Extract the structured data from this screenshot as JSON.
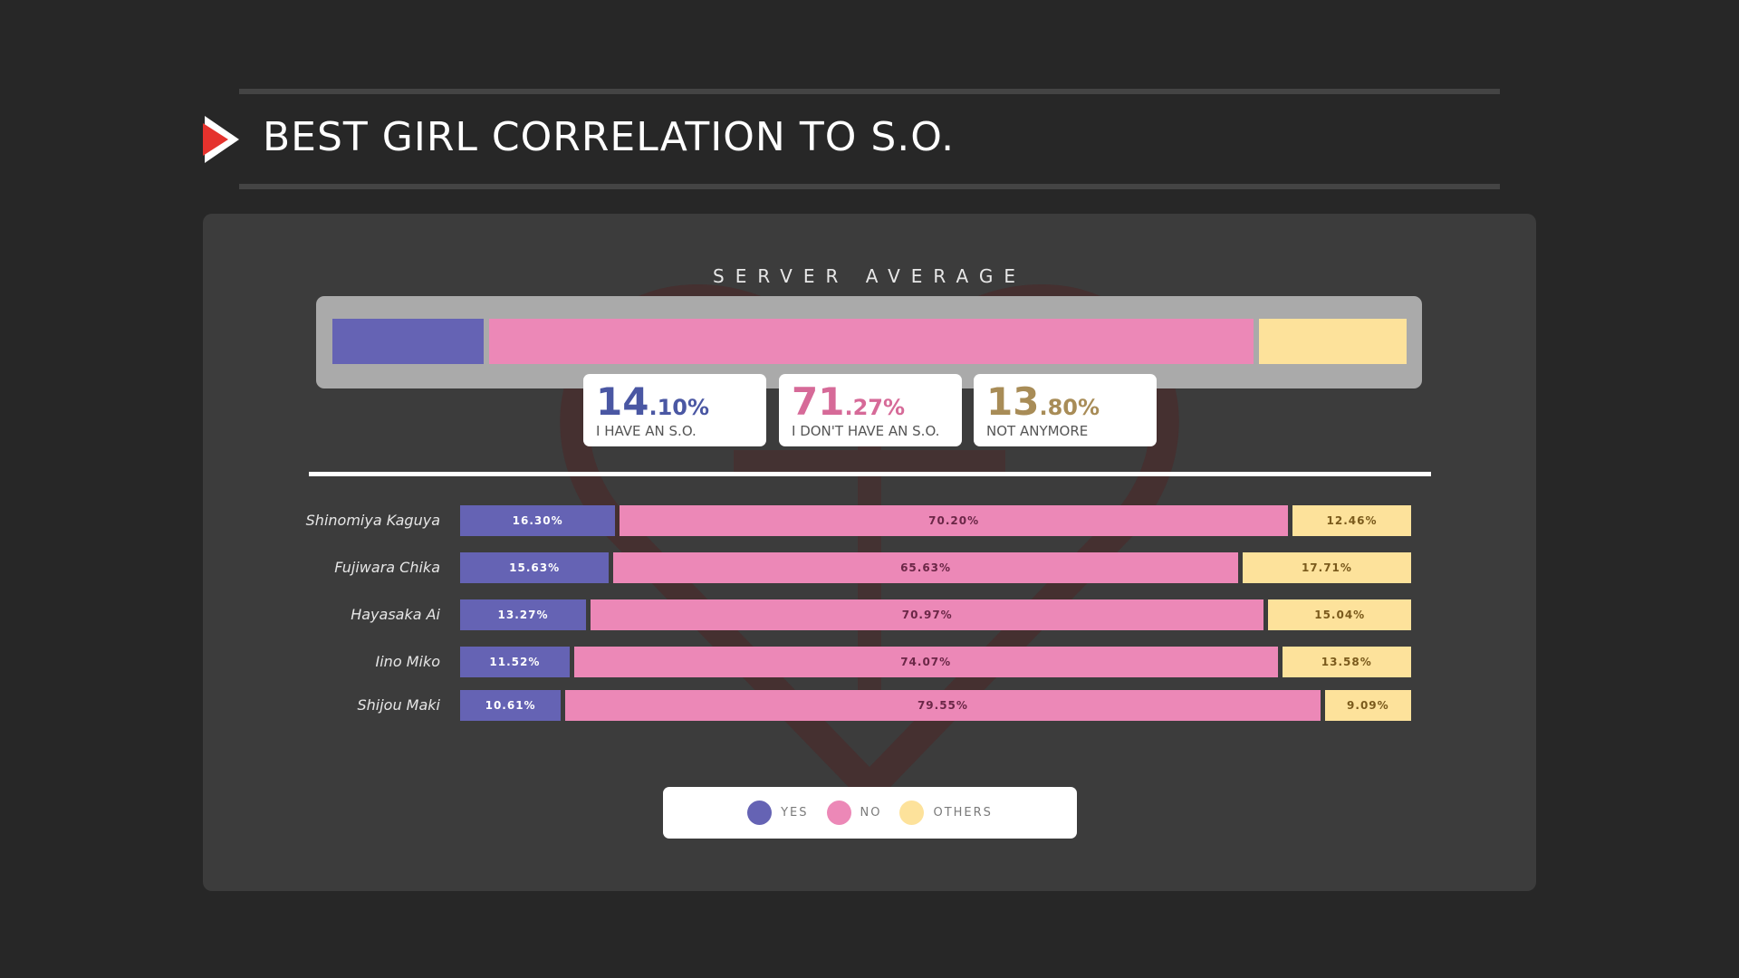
{
  "header": {
    "title": "BEST GIRL CORRELATION TO S.O."
  },
  "colors": {
    "yes": "#6563b4",
    "no": "#ec88b7",
    "others": "#fde29b",
    "yes_text": "#4a57a3",
    "no_text": "#d66a98",
    "others_text": "#a88c57",
    "no_label_text": "#6b2747",
    "others_label_text": "#7a5a1c"
  },
  "server_average": {
    "label": "SERVER AVERAGE",
    "stats": [
      {
        "key": "yes",
        "int": "14",
        "dec": ".10%",
        "caption": "I HAVE AN S.O.",
        "value": 14.1
      },
      {
        "key": "no",
        "int": "71",
        "dec": ".27%",
        "caption": "I DON'T HAVE AN S.O.",
        "value": 71.27
      },
      {
        "key": "others",
        "int": "13",
        "dec": ".80%",
        "caption": "NOT ANYMORE",
        "value": 13.8
      }
    ]
  },
  "chart_data": {
    "type": "bar",
    "stacked": true,
    "orientation": "horizontal",
    "categories": [
      "Shinomiya Kaguya",
      "Fujiwara Chika",
      "Hayasaka Ai",
      "Iino Miko",
      "Shijou Maki"
    ],
    "series": [
      {
        "name": "YES",
        "values": [
          16.3,
          15.63,
          13.27,
          11.52,
          10.61
        ],
        "labels": [
          "16.30%",
          "15.63%",
          "13.27%",
          "11.52%",
          "10.61%"
        ]
      },
      {
        "name": "NO",
        "values": [
          70.2,
          65.63,
          70.97,
          74.07,
          79.55
        ],
        "labels": [
          "70.20%",
          "65.63%",
          "70.97%",
          "74.07%",
          "79.55%"
        ]
      },
      {
        "name": "OTHERS",
        "values": [
          12.46,
          17.71,
          15.04,
          13.58,
          9.09
        ],
        "labels": [
          "12.46%",
          "17.71%",
          "15.04%",
          "13.58%",
          "9.09%"
        ]
      }
    ],
    "legend_position": "bottom-center"
  },
  "legend": {
    "items": [
      {
        "key": "yes",
        "label": "YES"
      },
      {
        "key": "no",
        "label": "NO"
      },
      {
        "key": "others",
        "label": "OTHERS"
      }
    ]
  }
}
